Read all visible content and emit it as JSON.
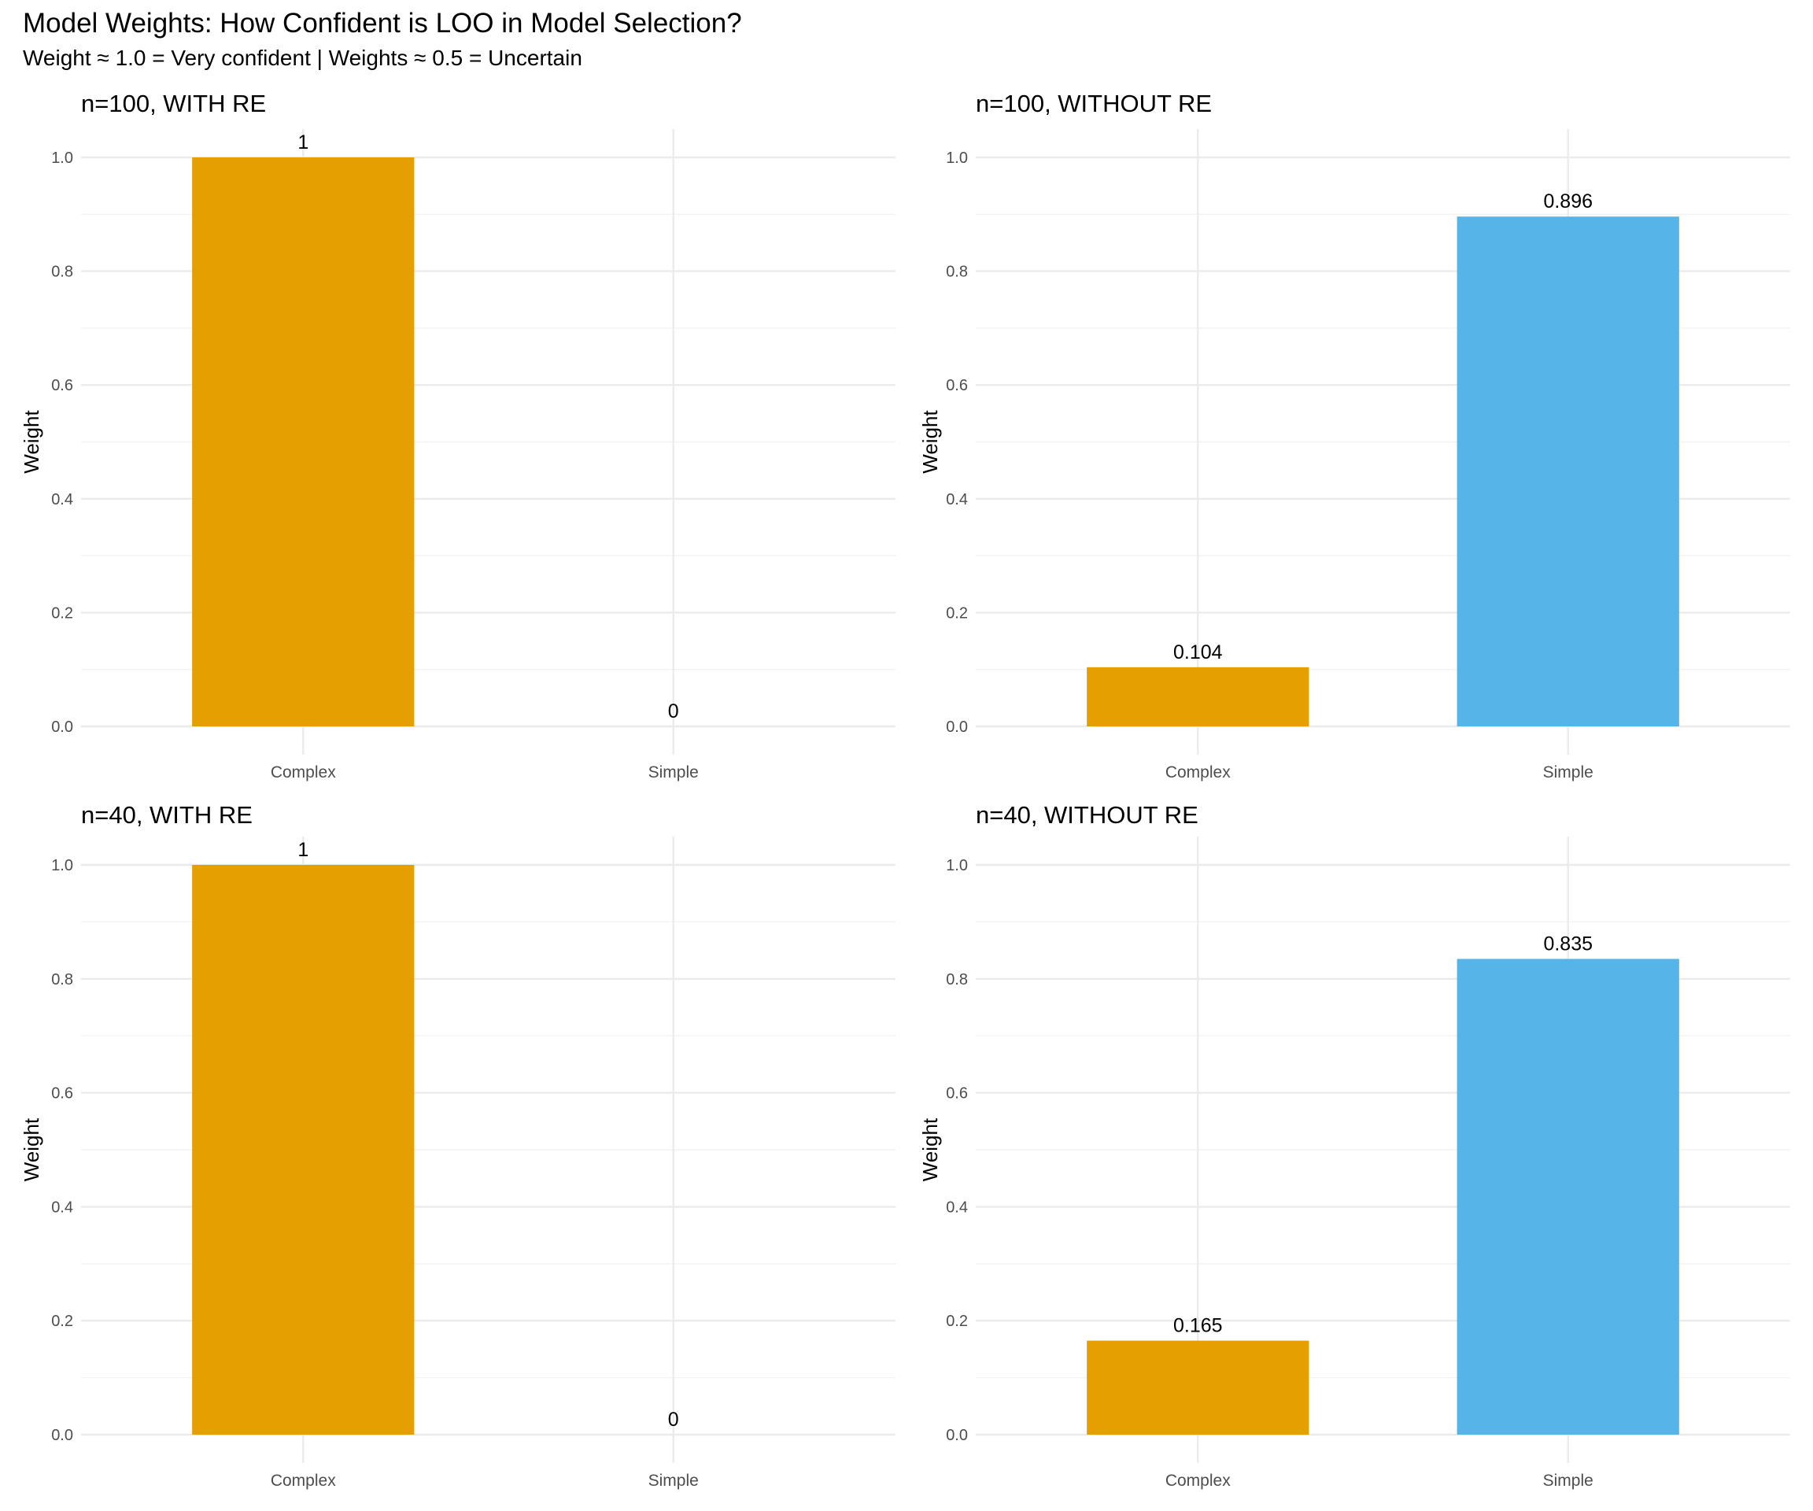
{
  "chart_data": [
    {
      "type": "bar",
      "panel": "top-left",
      "title": "n=100, WITH RE",
      "categories": [
        "Complex",
        "Simple"
      ],
      "values": [
        1,
        0
      ],
      "value_labels": [
        "1",
        "0"
      ],
      "colors": [
        "#E69F00",
        "#56B4E9"
      ],
      "xlabel": "",
      "ylabel": "Weight",
      "ylim": [
        0,
        1.0
      ],
      "yticks": [
        0.0,
        0.2,
        0.4,
        0.6,
        0.8,
        1.0
      ],
      "ytick_labels": [
        "0.0",
        "0.2",
        "0.4",
        "0.6",
        "0.8",
        "1.0"
      ],
      "grid": true
    },
    {
      "type": "bar",
      "panel": "top-right",
      "title": "n=100, WITHOUT RE",
      "categories": [
        "Complex",
        "Simple"
      ],
      "values": [
        0.104,
        0.896
      ],
      "value_labels": [
        "0.104",
        "0.896"
      ],
      "colors": [
        "#E69F00",
        "#56B4E9"
      ],
      "xlabel": "",
      "ylabel": "Weight",
      "ylim": [
        0,
        1.0
      ],
      "yticks": [
        0.0,
        0.2,
        0.4,
        0.6,
        0.8,
        1.0
      ],
      "ytick_labels": [
        "0.0",
        "0.2",
        "0.4",
        "0.6",
        "0.8",
        "1.0"
      ],
      "grid": true
    },
    {
      "type": "bar",
      "panel": "bottom-left",
      "title": "n=40, WITH RE",
      "categories": [
        "Complex",
        "Simple"
      ],
      "values": [
        1,
        0
      ],
      "value_labels": [
        "1",
        "0"
      ],
      "colors": [
        "#E69F00",
        "#56B4E9"
      ],
      "xlabel": "",
      "ylabel": "Weight",
      "ylim": [
        0,
        1.0
      ],
      "yticks": [
        0.0,
        0.2,
        0.4,
        0.6,
        0.8,
        1.0
      ],
      "ytick_labels": [
        "0.0",
        "0.2",
        "0.4",
        "0.6",
        "0.8",
        "1.0"
      ],
      "grid": true
    },
    {
      "type": "bar",
      "panel": "bottom-right",
      "title": "n=40, WITHOUT RE",
      "categories": [
        "Complex",
        "Simple"
      ],
      "values": [
        0.165,
        0.835
      ],
      "value_labels": [
        "0.165",
        "0.835"
      ],
      "colors": [
        "#E69F00",
        "#56B4E9"
      ],
      "xlabel": "",
      "ylabel": "Weight",
      "ylim": [
        0,
        1.0
      ],
      "yticks": [
        0.0,
        0.2,
        0.4,
        0.6,
        0.8,
        1.0
      ],
      "ytick_labels": [
        "0.0",
        "0.2",
        "0.4",
        "0.6",
        "0.8",
        "1.0"
      ],
      "grid": true
    }
  ],
  "figure": {
    "title": "Model Weights: How Confident is LOO in Model Selection?",
    "subtitle": "Weight ≈ 1.0 = Very confident | Weights ≈ 0.5 = Uncertain"
  }
}
